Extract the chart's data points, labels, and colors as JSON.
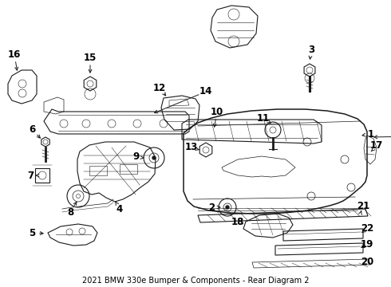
{
  "title": "2021 BMW 330e Bumper & Components - Rear Diagram 2",
  "bg": "#ffffff",
  "lc": "#1a1a1a",
  "tc": "#000000",
  "title_fs": 7.0,
  "label_fs": 8.5,
  "figw": 4.9,
  "figh": 3.6,
  "dpi": 100
}
